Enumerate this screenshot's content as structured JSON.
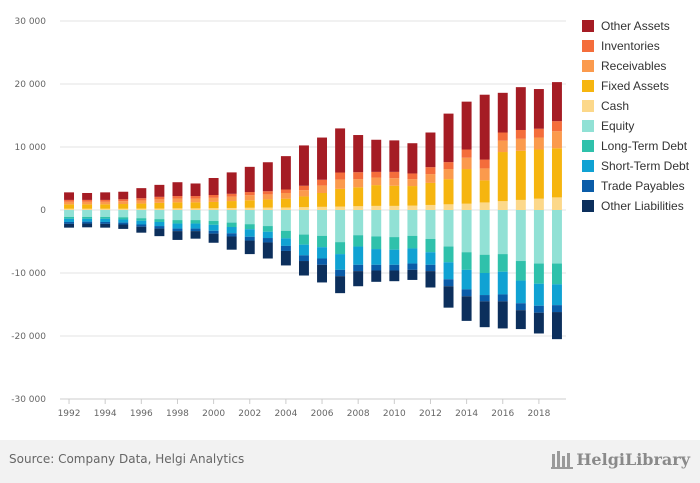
{
  "chart_data": {
    "type": "bar",
    "stacked": true,
    "years": [
      1992,
      1993,
      1994,
      1995,
      1996,
      1997,
      1998,
      1999,
      2000,
      2001,
      2002,
      2003,
      2004,
      2005,
      2006,
      2007,
      2008,
      2009,
      2010,
      2011,
      2012,
      2013,
      2014,
      2015,
      2016,
      2017,
      2018,
      2019
    ],
    "x_tick_labels": [
      "1992",
      "1994",
      "1996",
      "1998",
      "2000",
      "2002",
      "2004",
      "2006",
      "2008",
      "2010",
      "2012",
      "2014",
      "2016",
      "2018"
    ],
    "y_tick_labels": [
      "30 000",
      "20 000",
      "10 000",
      "0",
      "-10 000",
      "-20 000",
      "-30 000"
    ],
    "y_tick_values": [
      30000,
      20000,
      10000,
      0,
      -10000,
      -20000,
      -30000
    ],
    "ylim": [
      -30000,
      30000
    ],
    "grid": "horizontal",
    "legend_position": "right",
    "assets_series": [
      {
        "name": "Cash",
        "color": "#fcd88a",
        "values": [
          200,
          200,
          200,
          200,
          220,
          240,
          260,
          260,
          280,
          320,
          350,
          380,
          400,
          450,
          500,
          550,
          600,
          650,
          650,
          700,
          800,
          900,
          1000,
          1200,
          1400,
          1600,
          1800,
          2000
        ]
      },
      {
        "name": "Fixed Assets",
        "color": "#f6b50f",
        "values": [
          700,
          700,
          700,
          750,
          800,
          900,
          950,
          950,
          1000,
          1100,
          1200,
          1300,
          1400,
          1700,
          2200,
          2800,
          3000,
          3300,
          3200,
          3100,
          3500,
          4000,
          5500,
          3500,
          7800,
          7800,
          7800,
          7800
        ]
      },
      {
        "name": "Receivables",
        "color": "#fb9a4d",
        "values": [
          400,
          400,
          400,
          450,
          500,
          550,
          600,
          600,
          650,
          700,
          800,
          800,
          900,
          1000,
          1200,
          1500,
          1300,
          1200,
          1200,
          1100,
          1400,
          1600,
          1800,
          1900,
          1800,
          1900,
          1900,
          2700
        ]
      },
      {
        "name": "Inventories",
        "color": "#f46d3b",
        "values": [
          300,
          300,
          300,
          300,
          350,
          400,
          400,
          400,
          450,
          450,
          500,
          500,
          550,
          700,
          900,
          1100,
          1100,
          900,
          1000,
          900,
          1100,
          1100,
          1300,
          1400,
          1300,
          1400,
          1400,
          1600
        ]
      },
      {
        "name": "Other Assets",
        "color": "#a51c24",
        "values": [
          1200,
          1100,
          1200,
          1200,
          1600,
          1900,
          2200,
          2000,
          2700,
          3400,
          4000,
          4600,
          5300,
          6400,
          6700,
          7000,
          5900,
          5100,
          5000,
          4800,
          5500,
          7700,
          7600,
          10300,
          6300,
          6800,
          6300,
          6200
        ]
      }
    ],
    "liabilities_series": [
      {
        "name": "Equity",
        "color": "#91e1d5",
        "values": [
          -1100,
          -1100,
          -1100,
          -1150,
          -1300,
          -1450,
          -1600,
          -1600,
          -1750,
          -2000,
          -2250,
          -2550,
          -3300,
          -3900,
          -4100,
          -5100,
          -4000,
          -4200,
          -4300,
          -4100,
          -4600,
          -5800,
          -6700,
          -7100,
          -7000,
          -8100,
          -8500,
          -8500
        ]
      },
      {
        "name": "Long-Term Debt",
        "color": "#2fc1ab",
        "values": [
          -300,
          -300,
          -300,
          -350,
          -400,
          -450,
          -550,
          -550,
          -600,
          -700,
          -800,
          -900,
          -1200,
          -1600,
          -1800,
          -1900,
          -1800,
          -2000,
          -2000,
          -2000,
          -2100,
          -2500,
          -2800,
          -2900,
          -2800,
          -3100,
          -3200,
          -3300
        ]
      },
      {
        "name": "Short-Term Debt",
        "color": "#10a2d3",
        "values": [
          -500,
          -450,
          -500,
          -500,
          -600,
          -650,
          -800,
          -800,
          -950,
          -1000,
          -1200,
          -1000,
          -1200,
          -1700,
          -1800,
          -2500,
          -2900,
          -2500,
          -2400,
          -2400,
          -2000,
          -2700,
          -3100,
          -3500,
          -3600,
          -3600,
          -3500,
          -3300
        ]
      },
      {
        "name": "Trade Payables",
        "color": "#0a5ca8",
        "values": [
          -300,
          -300,
          -300,
          -300,
          -350,
          -400,
          -400,
          -400,
          -450,
          -500,
          -600,
          -700,
          -800,
          -900,
          -1000,
          -1000,
          -1000,
          -900,
          -900,
          -1000,
          -1000,
          -1100,
          -1100,
          -1000,
          -1100,
          -1100,
          -1100,
          -1100
        ]
      },
      {
        "name": "Other Liabilities",
        "color": "#0c2f5c",
        "values": [
          -600,
          -600,
          -600,
          -700,
          -950,
          -1200,
          -1400,
          -1200,
          -1450,
          -2100,
          -2150,
          -2550,
          -2300,
          -2300,
          -2800,
          -2700,
          -2400,
          -1800,
          -1700,
          -1600,
          -2600,
          -3400,
          -3900,
          -4100,
          -4300,
          -3000,
          -3300,
          -4300
        ]
      }
    ],
    "legend": [
      "Other Assets",
      "Inventories",
      "Receivables",
      "Fixed Assets",
      "Cash",
      "Equity",
      "Long-Term Debt",
      "Short-Term Debt",
      "Trade Payables",
      "Other Liabilities"
    ],
    "legend_colors": [
      "#a51c24",
      "#f46d3b",
      "#fb9a4d",
      "#f6b50f",
      "#fcd88a",
      "#91e1d5",
      "#2fc1ab",
      "#10a2d3",
      "#0a5ca8",
      "#0c2f5c"
    ]
  },
  "footer": {
    "source": "Source: Company Data, Helgi Analytics",
    "brand": "HelgiLibrary"
  }
}
